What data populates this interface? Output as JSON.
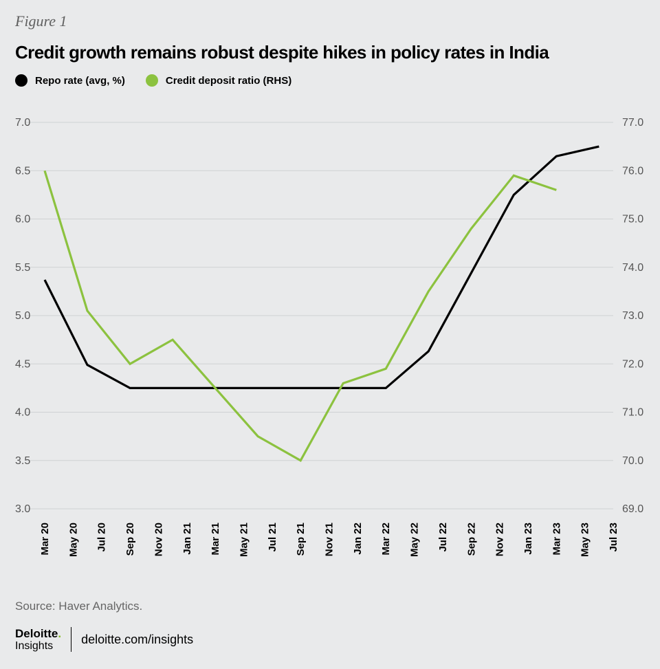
{
  "figure_label": "Figure 1",
  "colors": {
    "repo": "#000000",
    "credit": "#8cc23f",
    "grid": "#cfd1d3",
    "background": "#e9eaeb"
  },
  "chart_data": {
    "type": "line",
    "title": "Credit growth remains robust despite hikes in policy rates in India",
    "categories": [
      "Mar 20",
      "May 20",
      "Jul 20",
      "Sep 20",
      "Nov 20",
      "Jan 21",
      "Mar 21",
      "May 21",
      "Jul 21",
      "Sep 21",
      "Nov 21",
      "Jan 22",
      "Mar 22",
      "May 22",
      "Jul 22",
      "Sep 22",
      "Nov 22",
      "Jan 23",
      "Mar 23",
      "May 23",
      "Jul 23"
    ],
    "left_axis": {
      "ylim": [
        3.0,
        7.0
      ],
      "ticks": [
        "3.0",
        "3.5",
        "4.0",
        "4.5",
        "5.0",
        "5.5",
        "6.0",
        "6.5",
        "7.0"
      ]
    },
    "right_axis": {
      "ylim": [
        69.0,
        77.0
      ],
      "ticks": [
        "69.0",
        "70.0",
        "71.0",
        "72.0",
        "73.0",
        "74.0",
        "75.0",
        "76.0",
        "77.0"
      ]
    },
    "series": [
      {
        "name": "Repo rate (avg, %)",
        "axis": "left",
        "points": [
          {
            "x": "Mar 20",
            "y": 5.37
          },
          {
            "x": "Jun 20",
            "y": 4.49
          },
          {
            "x": "Sep 20",
            "y": 4.25
          },
          {
            "x": "Dec 20",
            "y": 4.25
          },
          {
            "x": "Mar 21",
            "y": 4.25
          },
          {
            "x": "Jun 21",
            "y": 4.25
          },
          {
            "x": "Sep 21",
            "y": 4.25
          },
          {
            "x": "Dec 21",
            "y": 4.25
          },
          {
            "x": "Mar 22",
            "y": 4.25
          },
          {
            "x": "Jun 22",
            "y": 4.63
          },
          {
            "x": "Sep 22",
            "y": 5.44
          },
          {
            "x": "Dec 22",
            "y": 6.25
          },
          {
            "x": "Mar 23",
            "y": 6.65
          },
          {
            "x": "Jun 23",
            "y": 6.75
          }
        ]
      },
      {
        "name": "Credit deposit ratio  (RHS)",
        "axis": "right",
        "points": [
          {
            "x": "Mar 20",
            "y": 76.0
          },
          {
            "x": "Jun 20",
            "y": 73.1
          },
          {
            "x": "Sep 20",
            "y": 72.0
          },
          {
            "x": "Dec 20",
            "y": 72.5
          },
          {
            "x": "Mar 21",
            "y": 71.5
          },
          {
            "x": "Jun 21",
            "y": 70.5
          },
          {
            "x": "Sep 21",
            "y": 70.0
          },
          {
            "x": "Dec 21",
            "y": 71.6
          },
          {
            "x": "Mar 22",
            "y": 71.9
          },
          {
            "x": "Jun 22",
            "y": 73.5
          },
          {
            "x": "Sep 22",
            "y": 74.8
          },
          {
            "x": "Dec 22",
            "y": 75.9
          },
          {
            "x": "Mar 23",
            "y": 75.6
          }
        ]
      }
    ]
  },
  "source": "Source: Haver Analytics.",
  "footer": {
    "brand": "Deloitte",
    "brand_dot": ".",
    "sub": "Insights",
    "site": "deloitte.com/insights"
  }
}
